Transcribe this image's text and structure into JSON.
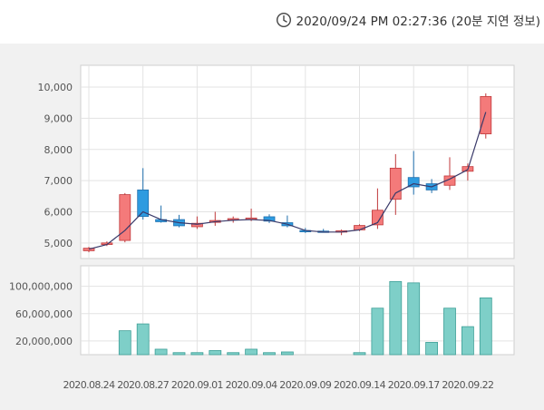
{
  "header": {
    "clock_icon": "clock-icon",
    "timestamp": "2020/09/24 PM 02:27:36 (20분 지연 정보)"
  },
  "colors": {
    "up": "#f47a7a",
    "up_border": "#c0393b",
    "down": "#2e9be0",
    "down_border": "#1f6fae",
    "volume": "#7ecfc8",
    "volume_border": "#3e9f97",
    "ma_line": "#3a3a6a"
  },
  "chart_data": [
    {
      "type": "candlestick",
      "ylim": [
        4500,
        10700
      ],
      "y_ticks": [
        "5,000",
        "6,000",
        "7,000",
        "8,000",
        "9,000",
        "10,000"
      ],
      "y_tick_values": [
        5000,
        6000,
        7000,
        8000,
        9000,
        10000
      ],
      "candles": [
        {
          "o": 4750,
          "h": 4870,
          "l": 4700,
          "c": 4830
        },
        {
          "o": 4950,
          "h": 5050,
          "l": 4900,
          "c": 5000
        },
        {
          "o": 5080,
          "h": 6600,
          "l": 5020,
          "c": 6550
        },
        {
          "o": 6700,
          "h": 7400,
          "l": 5750,
          "c": 5850
        },
        {
          "o": 5750,
          "h": 6200,
          "l": 5650,
          "c": 5680
        },
        {
          "o": 5750,
          "h": 5900,
          "l": 5500,
          "c": 5550
        },
        {
          "o": 5520,
          "h": 5850,
          "l": 5450,
          "c": 5630
        },
        {
          "o": 5660,
          "h": 6000,
          "l": 5550,
          "c": 5720
        },
        {
          "o": 5750,
          "h": 5850,
          "l": 5650,
          "c": 5780
        },
        {
          "o": 5760,
          "h": 6100,
          "l": 5700,
          "c": 5800
        },
        {
          "o": 5840,
          "h": 5920,
          "l": 5640,
          "c": 5700
        },
        {
          "o": 5650,
          "h": 5880,
          "l": 5500,
          "c": 5550
        },
        {
          "o": 5400,
          "h": 5480,
          "l": 5320,
          "c": 5360
        },
        {
          "o": 5380,
          "h": 5450,
          "l": 5330,
          "c": 5370
        },
        {
          "o": 5360,
          "h": 5430,
          "l": 5250,
          "c": 5390
        },
        {
          "o": 5420,
          "h": 5600,
          "l": 5380,
          "c": 5560
        },
        {
          "o": 5580,
          "h": 6750,
          "l": 5450,
          "c": 6050
        },
        {
          "o": 6400,
          "h": 7850,
          "l": 5900,
          "c": 7400
        },
        {
          "o": 7100,
          "h": 7950,
          "l": 6550,
          "c": 6800
        },
        {
          "o": 6900,
          "h": 7050,
          "l": 6600,
          "c": 6700
        },
        {
          "o": 6850,
          "h": 7750,
          "l": 6700,
          "c": 7150
        },
        {
          "o": 7300,
          "h": 7550,
          "l": 7000,
          "c": 7450
        },
        {
          "o": 8500,
          "h": 9800,
          "l": 8350,
          "c": 9700
        }
      ],
      "ma": [
        4800,
        4950,
        5400,
        6000,
        5750,
        5650,
        5600,
        5680,
        5730,
        5750,
        5720,
        5600,
        5400,
        5350,
        5350,
        5420,
        5650,
        6600,
        6900,
        6800,
        7050,
        7350,
        9200
      ]
    },
    {
      "type": "bar",
      "ylim": [
        0,
        130000000
      ],
      "y_ticks": [
        "20,000,000",
        "60,000,000",
        "100,000,000"
      ],
      "y_tick_values": [
        20000000,
        60000000,
        100000000
      ],
      "values": [
        0,
        0,
        35000000,
        45000000,
        8000000,
        3000000,
        3000000,
        6000000,
        3000000,
        8000000,
        3000000,
        4000000,
        0,
        0,
        0,
        3000000,
        68000000,
        107000000,
        105000000,
        18000000,
        68000000,
        41000000,
        83000000
      ]
    }
  ],
  "x_ticks": [
    "2020.08.24",
    "2020.08.27",
    "2020.09.01",
    "2020.09.04",
    "2020.09.09",
    "2020.09.14",
    "2020.09.17",
    "2020.09.22"
  ],
  "x_tick_index": [
    0,
    3,
    6,
    9,
    12,
    15,
    18,
    21
  ]
}
